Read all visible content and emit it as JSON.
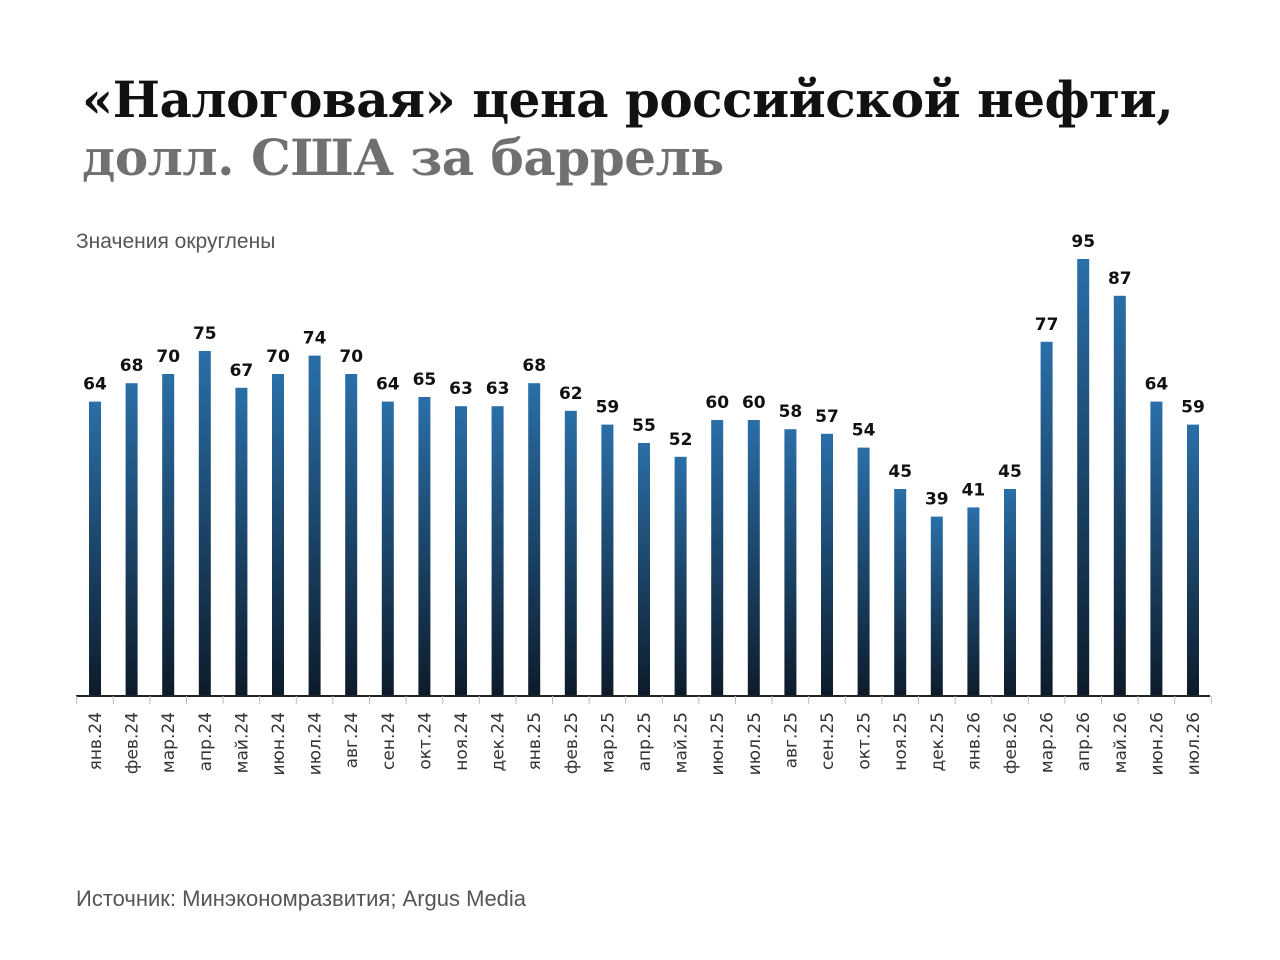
{
  "header": {
    "title_line1": "«Налоговая» цена российской нефти,",
    "title_line2": "долл. США за баррель"
  },
  "note": "Значения округлены",
  "source": "Источник: Минэкономразвития; Argus Media",
  "colors": {
    "bar_top": "#2a6fa8",
    "bar_bottom": "#0d1b2a",
    "axis": "#222222",
    "title_primary": "#111111",
    "title_secondary": "#707070"
  },
  "chart_data": {
    "type": "bar",
    "categories": [
      "янв.24",
      "фев.24",
      "мар.24",
      "апр.24",
      "май.24",
      "июн.24",
      "июл.24",
      "авг.24",
      "сен.24",
      "окт.24",
      "ноя.24",
      "дек.24",
      "янв.25",
      "фев.25",
      "мар.25",
      "апр.25",
      "май.25",
      "июн.25",
      "июл.25",
      "авг.25",
      "сен.25",
      "окт.25",
      "ноя.25",
      "дек.25",
      "янв.26",
      "фев.26",
      "мар.26",
      "апр.26",
      "май.26",
      "июн.26",
      "июл.26"
    ],
    "values": [
      64,
      68,
      70,
      75,
      67,
      70,
      74,
      70,
      64,
      65,
      63,
      63,
      68,
      62,
      59,
      55,
      52,
      60,
      60,
      58,
      57,
      54,
      45,
      39,
      41,
      45,
      77,
      95,
      87,
      64,
      59
    ],
    "title": "«Налоговая» цена российской нефти, долл. США за баррель",
    "xlabel": "",
    "ylabel": "",
    "ylim": [
      0,
      95
    ],
    "grid": false,
    "legend": "none"
  }
}
